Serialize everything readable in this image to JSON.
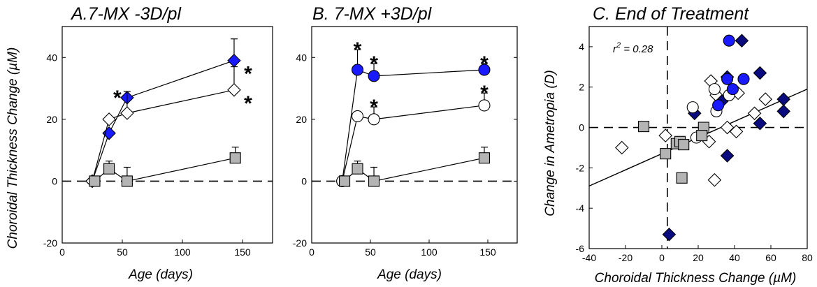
{
  "colors": {
    "blue": "#1a1aff",
    "white": "#ffffff",
    "gray": "#b4b4b4",
    "dark_blue": "#0b0b80"
  },
  "chart_data": [
    {
      "type": "line",
      "title": "A.7-MX -3D/pl",
      "xlabel": "Age (days)",
      "ylabel": "Choroidal Thickness Change (µM)",
      "xlim": [
        0,
        175
      ],
      "ylim": [
        -20,
        50
      ],
      "xticks": [
        "0",
        "50",
        "100",
        "150"
      ],
      "yticks": [
        "-20",
        "0",
        "20",
        "40"
      ],
      "reference_line_y": 0,
      "series": [
        {
          "marker": "diamond",
          "color": "blue",
          "x": [
            25,
            39,
            54,
            143
          ],
          "y": [
            0,
            15.5,
            27,
            39
          ],
          "err": [
            0,
            0,
            0,
            7
          ],
          "sig": [
            false,
            false,
            true,
            true
          ]
        },
        {
          "marker": "diamond",
          "color": "white",
          "x": [
            25,
            39,
            54,
            143
          ],
          "y": [
            0,
            20,
            22,
            29.5
          ],
          "err": [
            0,
            0,
            7,
            7.5
          ],
          "sig": [
            false,
            false,
            false,
            true
          ]
        },
        {
          "marker": "square",
          "color": "gray",
          "x": [
            27,
            39,
            54,
            144
          ],
          "y": [
            0,
            4,
            0,
            7.5
          ],
          "err": [
            0,
            2.5,
            4.5,
            3.5
          ],
          "sig": [
            false,
            false,
            false,
            false
          ]
        }
      ],
      "star_label": "*"
    },
    {
      "type": "line",
      "title": "B. 7-MX +3D/pl",
      "xlabel": "Age (days)",
      "ylabel": "",
      "xlim": [
        0,
        175
      ],
      "ylim": [
        -20,
        50
      ],
      "xticks": [
        "0",
        "50",
        "100",
        "150"
      ],
      "yticks": [
        "-20",
        "0",
        "20",
        "40"
      ],
      "reference_line_y": 0,
      "series": [
        {
          "marker": "circle",
          "color": "blue",
          "x": [
            26,
            39,
            53,
            147
          ],
          "y": [
            0,
            36,
            34,
            36
          ],
          "err": [
            0,
            6.5,
            4,
            2
          ],
          "sig": [
            false,
            true,
            true,
            true
          ]
        },
        {
          "marker": "circle",
          "color": "white",
          "x": [
            26,
            39,
            53,
            147
          ],
          "y": [
            0,
            21,
            20,
            24.5
          ],
          "err": [
            0,
            0,
            4,
            4
          ],
          "sig": [
            false,
            false,
            true,
            true
          ]
        },
        {
          "marker": "square",
          "color": "gray",
          "x": [
            28,
            39,
            53,
            147
          ],
          "y": [
            0,
            4,
            0,
            7.5
          ],
          "err": [
            0,
            2.5,
            4.5,
            3.5
          ],
          "sig": [
            false,
            false,
            false,
            false
          ]
        }
      ],
      "star_label": "*"
    },
    {
      "type": "scatter",
      "title": "C. End of Treatment",
      "xlabel": "Choroidal Thickness Change (µM)",
      "ylabel": "Change in Ametropia (D)",
      "xlim": [
        -40,
        80
      ],
      "ylim": [
        -6,
        5
      ],
      "xticks": [
        "-40",
        "-20",
        "0",
        "20",
        "40",
        "60",
        "80"
      ],
      "yticks": [
        "-6",
        "-4",
        "-2",
        "0",
        "2",
        "4"
      ],
      "annotation": {
        "r_label": "r",
        "r_sup": "2",
        "r_value": " = 0.28"
      },
      "regression": {
        "slope": 0.04,
        "intercept": -1.3
      },
      "reference_lines": {
        "x": 3,
        "y": 0
      },
      "series": [
        {
          "marker": "diamond",
          "color": "white",
          "points": [
            [
              -22,
              -1.0
            ],
            [
              2,
              -0.4
            ],
            [
              26,
              -0.7
            ],
            [
              27,
              2.3
            ],
            [
              30,
              1.6
            ],
            [
              29,
              -2.6
            ],
            [
              36,
              0.0
            ],
            [
              42,
              1.7
            ],
            [
              41,
              -0.2
            ],
            [
              51,
              0.7
            ],
            [
              57,
              1.4
            ]
          ]
        },
        {
          "marker": "diamond",
          "color": "dark_blue",
          "points": [
            [
              18,
              0.7
            ],
            [
              33,
              1.3
            ],
            [
              36,
              2.5
            ],
            [
              44,
              4.3
            ],
            [
              54,
              2.7
            ],
            [
              67,
              1.4
            ],
            [
              54,
              0.2
            ],
            [
              36,
              -1.4
            ],
            [
              4,
              -5.3
            ],
            [
              67,
              0.8
            ]
          ]
        },
        {
          "marker": "circle",
          "color": "white",
          "points": [
            [
              17,
              1.0
            ],
            [
              19,
              -0.5
            ],
            [
              29,
              1.9
            ],
            [
              30,
              0.8
            ],
            [
              37,
              1.6
            ]
          ]
        },
        {
          "marker": "circle",
          "color": "blue",
          "points": [
            [
              37,
              4.3
            ],
            [
              39,
              1.9
            ],
            [
              36,
              2.4
            ],
            [
              45,
              2.4
            ],
            [
              31,
              1.1
            ]
          ]
        },
        {
          "marker": "square",
          "color": "gray",
          "points": [
            [
              -10,
              0.05
            ],
            [
              2,
              -1.3
            ],
            [
              8,
              -0.8
            ],
            [
              10,
              -0.7
            ],
            [
              12,
              -0.85
            ],
            [
              11,
              -2.5
            ],
            [
              23,
              0.0
            ],
            [
              22,
              -0.4
            ]
          ]
        }
      ]
    }
  ]
}
